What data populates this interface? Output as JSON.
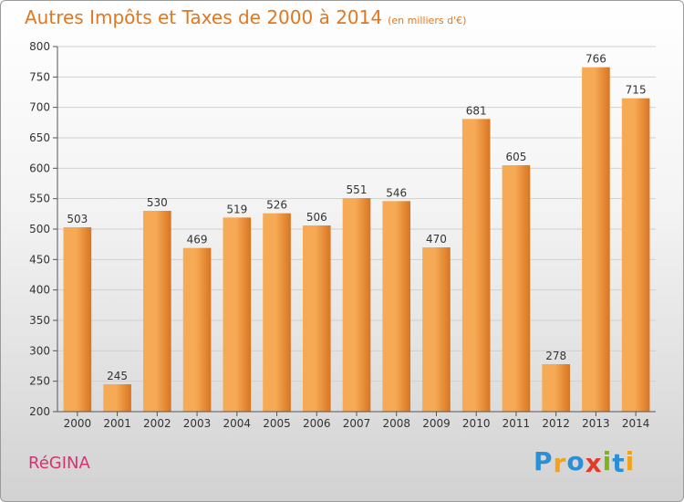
{
  "header": {
    "title": "Autres Impôts et Taxes de 2000 à 2014",
    "unit": "(en milliers d'€)"
  },
  "footer": {
    "town": "RéGINA",
    "brand_letters": [
      {
        "ch": "P",
        "color": "#2a8fd6"
      },
      {
        "ch": "r",
        "color": "#f3a21c"
      },
      {
        "ch": "o",
        "color": "#2a8fd6"
      },
      {
        "ch": "x",
        "color": "#e23b2a"
      },
      {
        "ch": "i",
        "color": "#7bb51c"
      },
      {
        "ch": "t",
        "color": "#2a8fd6"
      },
      {
        "ch": "i",
        "color": "#f3a21c"
      }
    ]
  },
  "colors": {
    "bar_light": "#f7aa55",
    "bar_dark": "#d87521",
    "accent": "#e2771f",
    "axis": "#555555"
  },
  "chart_data": {
    "type": "bar",
    "title": "Autres Impôts et Taxes de 2000 à 2014",
    "subtitle": "(en milliers d'€)",
    "categories": [
      "2000",
      "2001",
      "2002",
      "2003",
      "2004",
      "2005",
      "2006",
      "2007",
      "2008",
      "2009",
      "2010",
      "2011",
      "2012",
      "2013",
      "2014"
    ],
    "values": [
      503,
      245,
      530,
      469,
      519,
      526,
      506,
      551,
      546,
      470,
      681,
      605,
      278,
      766,
      715
    ],
    "ylim": [
      200,
      800
    ],
    "yticks": [
      200,
      250,
      300,
      350,
      400,
      450,
      500,
      550,
      600,
      650,
      700,
      750,
      800
    ],
    "grid": true,
    "data_labels": true
  }
}
